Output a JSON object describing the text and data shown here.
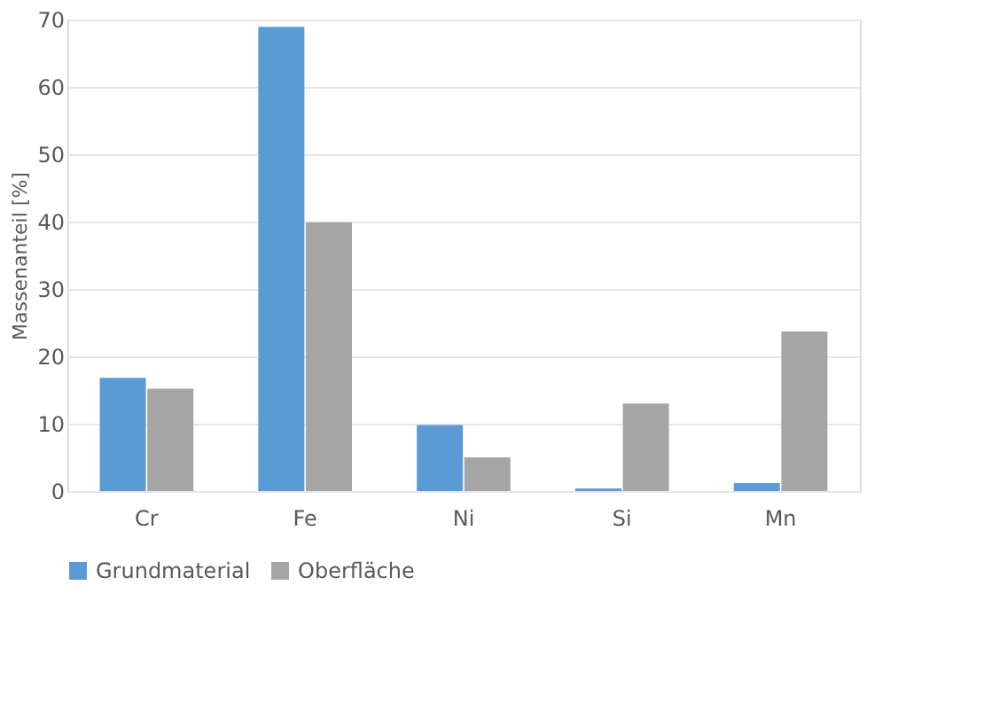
{
  "chart_data": {
    "type": "bar",
    "ylabel": "Massenanteil [%]",
    "categories": [
      "Cr",
      "Fe",
      "Ni",
      "Si",
      "Mn"
    ],
    "series": [
      {
        "name": "Grundmaterial",
        "color": "#5b9bd5",
        "values": [
          16.8,
          68.9,
          9.8,
          0.4,
          1.2
        ]
      },
      {
        "name": "Oberfläche",
        "color": "#a5a5a5",
        "values": [
          15.2,
          39.9,
          5.0,
          13.0,
          23.7
        ]
      }
    ],
    "ylim": [
      0,
      70
    ],
    "yticks": [
      0,
      10,
      20,
      30,
      40,
      50,
      60,
      70
    ],
    "grid": "y",
    "legend": "bottom"
  }
}
